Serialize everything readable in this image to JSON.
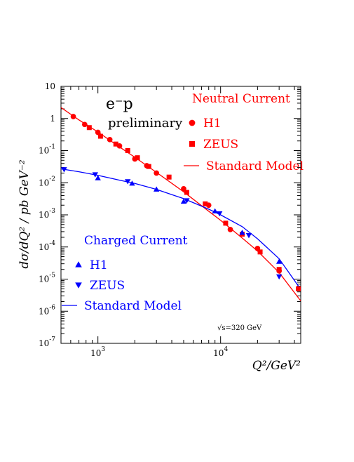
{
  "chart_data": {
    "type": "scatter",
    "x_scale": "log",
    "y_scale": "log",
    "xlim": [
      500,
      45000
    ],
    "ylim": [
      1e-07,
      10
    ],
    "xlabel": "Q²/GeV²",
    "ylabel": "dσ/dQ² / pb GeV⁻²",
    "x_tick_labels": [
      {
        "value": 1000,
        "base": "10",
        "exp": "3"
      },
      {
        "value": 10000,
        "base": "10",
        "exp": "4"
      }
    ],
    "y_tick_labels": [
      {
        "value": 10,
        "base": "10",
        "exp": ""
      },
      {
        "value": 1,
        "base": "1",
        "exp": ""
      },
      {
        "value": 0.1,
        "base": "10",
        "exp": "-1"
      },
      {
        "value": 0.01,
        "base": "10",
        "exp": "-2"
      },
      {
        "value": 0.001,
        "base": "10",
        "exp": "-3"
      },
      {
        "value": 0.0001,
        "base": "10",
        "exp": "-4"
      },
      {
        "value": 1e-05,
        "base": "10",
        "exp": "-5"
      },
      {
        "value": 1e-06,
        "base": "10",
        "exp": "-6"
      },
      {
        "value": 1e-07,
        "base": "10",
        "exp": "-7"
      }
    ],
    "annotations": {
      "process": "e⁻p",
      "status": "preliminary",
      "energy": "√s=320 GeV"
    },
    "groups": [
      {
        "title": "Neutral Current",
        "color": "#ff0000",
        "sm_label": "Standard Model",
        "series": [
          {
            "name": "H1",
            "marker": "circle",
            "points": [
              [
                630,
                1.15
              ],
              [
                780,
                0.65
              ],
              [
                1000,
                0.37
              ],
              [
                1250,
                0.22
              ],
              [
                1500,
                0.14
              ],
              [
                2000,
                0.055
              ],
              [
                2500,
                0.034
              ],
              [
                3000,
                0.02
              ],
              [
                5000,
                0.0065
              ],
              [
                8000,
                0.002
              ],
              [
                12000,
                0.00035
              ],
              [
                20000,
                9e-05
              ],
              [
                30000,
                1.8e-05
              ]
            ]
          },
          {
            "name": "ZEUS",
            "marker": "square",
            "points": [
              [
                850,
                0.52
              ],
              [
                1050,
                0.28
              ],
              [
                1400,
                0.16
              ],
              [
                1750,
                0.1
              ],
              [
                2100,
                0.06
              ],
              [
                2600,
                0.032
              ],
              [
                3800,
                0.015
              ],
              [
                5300,
                0.005
              ],
              [
                7500,
                0.0022
              ],
              [
                11000,
                0.00055
              ],
              [
                15000,
                0.00025
              ],
              [
                21000,
                7e-05
              ],
              [
                30000,
                2e-05
              ],
              [
                43000,
                5e-06
              ]
            ]
          }
        ],
        "model": [
          [
            500,
            2.2
          ],
          [
            700,
            0.9
          ],
          [
            1000,
            0.38
          ],
          [
            1500,
            0.13
          ],
          [
            2000,
            0.062
          ],
          [
            3000,
            0.021
          ],
          [
            5000,
            0.0052
          ],
          [
            8000,
            0.0013
          ],
          [
            10000,
            0.00068
          ],
          [
            15000,
            0.00019
          ],
          [
            20000,
            7.5e-05
          ],
          [
            30000,
            1.6e-05
          ],
          [
            45000,
            2.1e-06
          ]
        ]
      },
      {
        "title": "Charged Current",
        "color": "#0000ff",
        "sm_label": "Standard Model",
        "series": [
          {
            "name": "H1",
            "marker": "triangle-up",
            "points": [
              [
                1000,
                0.014
              ],
              [
                1900,
                0.0095
              ],
              [
                3000,
                0.0062
              ],
              [
                5000,
                0.0026
              ],
              [
                9000,
                0.0013
              ],
              [
                15000,
                0.00028
              ],
              [
                30000,
                3.5e-05
              ]
            ]
          },
          {
            "name": "ZEUS",
            "marker": "triangle-down",
            "points": [
              [
                530,
                0.026
              ],
              [
                950,
                0.018
              ],
              [
                1750,
                0.011
              ],
              [
                5300,
                0.0028
              ],
              [
                9800,
                0.0011
              ],
              [
                17000,
                0.00023
              ],
              [
                30000,
                1.2e-05
              ]
            ]
          }
        ],
        "model": [
          [
            500,
            0.027
          ],
          [
            700,
            0.022
          ],
          [
            1000,
            0.017
          ],
          [
            1500,
            0.012
          ],
          [
            2000,
            0.0095
          ],
          [
            3000,
            0.0062
          ],
          [
            5000,
            0.0032
          ],
          [
            8000,
            0.0015
          ],
          [
            10000,
            0.001
          ],
          [
            15000,
            0.00043
          ],
          [
            20000,
            0.00018
          ],
          [
            30000,
            4.3e-05
          ],
          [
            45000,
            4.8e-06
          ]
        ]
      }
    ]
  }
}
